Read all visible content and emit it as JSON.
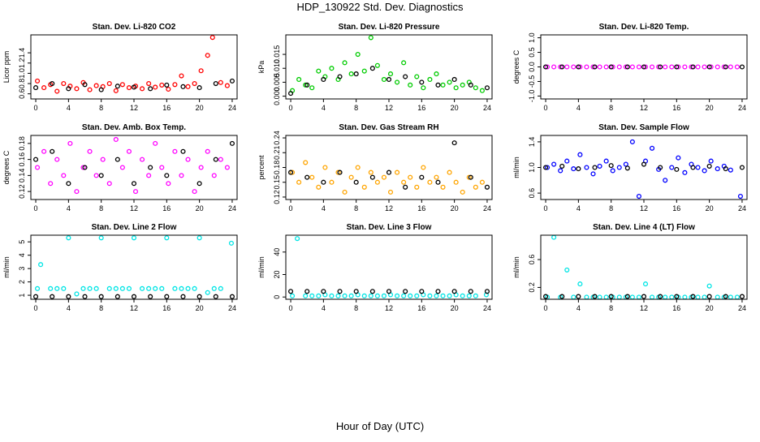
{
  "title": "HDP_130922  Std. Dev. Diagnostics",
  "xlabel": "Hour of Day (UTC)",
  "chart_data": [
    {
      "type": "scatter",
      "title": "Stan. Dev. Li-820 CO2",
      "ylabel": "Licor ppm",
      "xlim": [
        -0.6,
        24.6
      ],
      "xticks": [
        0,
        4,
        8,
        12,
        16,
        20,
        24
      ],
      "ylim": [
        0.5,
        1.75
      ],
      "yticks": [
        0.6,
        0.8,
        {
          "value": 1,
          "label": "1.0"
        },
        1.2,
        1.4
      ],
      "series": [
        {
          "color": "#ff0000",
          "x": [
            0.2,
            1,
            1.8,
            2.6,
            3.4,
            4.2,
            5,
            5.8,
            6.6,
            7.4,
            8.2,
            9,
            9.8,
            10.6,
            11.4,
            12.2,
            13,
            13.8,
            14.6,
            15.4,
            16.2,
            17,
            17.8,
            18.6,
            19.4,
            20.2,
            21,
            21.6,
            22.6,
            23.4
          ],
          "values": [
            0.85,
            0.72,
            0.78,
            0.65,
            0.8,
            0.75,
            0.7,
            0.82,
            0.68,
            0.76,
            0.74,
            0.8,
            0.66,
            0.78,
            0.72,
            0.75,
            0.7,
            0.8,
            0.73,
            0.77,
            0.69,
            0.78,
            0.95,
            0.74,
            0.8,
            1.05,
            1.35,
            1.7,
            0.82,
            0.76
          ]
        },
        {
          "color": "#000000",
          "x": [
            0,
            2,
            4,
            6,
            8,
            10,
            12,
            14,
            16,
            18,
            20,
            22,
            24
          ],
          "values": [
            0.72,
            0.8,
            0.7,
            0.78,
            0.68,
            0.75,
            0.73,
            0.7,
            0.77,
            0.74,
            0.72,
            0.8,
            0.85
          ]
        }
      ]
    },
    {
      "type": "scatter",
      "title": "Stan. Dev. Li-820 Pressure",
      "ylabel": "kPa",
      "xlim": [
        -0.6,
        24.6
      ],
      "xticks": [
        0,
        4,
        8,
        12,
        16,
        20,
        24
      ],
      "ylim": [
        -0.001,
        0.022
      ],
      "yticks": [
        {
          "value": 0,
          "label": "0.000"
        },
        0.005,
        {
          "value": 0.01,
          "label": "0.010"
        },
        0.015
      ],
      "series": [
        {
          "color": "#00cc00",
          "x": [
            0.2,
            1,
            1.8,
            2.6,
            3.4,
            4.2,
            5,
            5.8,
            6.6,
            7.4,
            8.2,
            9,
            9.8,
            10.6,
            11.4,
            12.2,
            13,
            13.8,
            14.6,
            15.4,
            16.2,
            17,
            17.8,
            18.6,
            19.4,
            20.2,
            21,
            21.8,
            22.6,
            23.4
          ],
          "values": [
            0.002,
            0.006,
            0.004,
            0.003,
            0.009,
            0.007,
            0.01,
            0.006,
            0.012,
            0.008,
            0.015,
            0.009,
            0.021,
            0.011,
            0.006,
            0.008,
            0.005,
            0.012,
            0.004,
            0.007,
            0.003,
            0.006,
            0.008,
            0.004,
            0.005,
            0.003,
            0.004,
            0.005,
            0.003,
            0.002
          ]
        },
        {
          "color": "#000000",
          "x": [
            0,
            2,
            4,
            6,
            8,
            10,
            12,
            14,
            16,
            18,
            20,
            22,
            24
          ],
          "values": [
            0.001,
            0.004,
            0.006,
            0.007,
            0.008,
            0.01,
            0.006,
            0.007,
            0.005,
            0.004,
            0.006,
            0.004,
            0.003
          ]
        }
      ]
    },
    {
      "type": "scatter",
      "title": "Stan. Dev. Li-820 Temp.",
      "ylabel": "degrees C",
      "xlim": [
        -0.6,
        24.6
      ],
      "xticks": [
        0,
        4,
        8,
        12,
        16,
        20,
        24
      ],
      "ylim": [
        -1.1,
        1.1
      ],
      "yticks": [
        {
          "value": -1,
          "label": "-1.0"
        },
        -0.5,
        {
          "value": 0,
          "label": "0.0"
        },
        0.5,
        {
          "value": 1,
          "label": "1.0"
        }
      ],
      "series": [
        {
          "color": "#ff00ff",
          "x": [
            0.2,
            1,
            1.8,
            2.6,
            3.4,
            4.2,
            5,
            5.8,
            6.6,
            7.4,
            8.2,
            9,
            9.8,
            10.6,
            11.4,
            12.2,
            13,
            13.8,
            14.6,
            15.4,
            16.2,
            17,
            17.8,
            18.6,
            19.4,
            20.2,
            21,
            21.8,
            22.6,
            23.4
          ],
          "values": [
            0,
            0,
            0,
            0,
            0,
            0,
            0,
            0,
            0,
            0,
            0,
            0,
            0,
            0,
            0,
            0,
            0,
            0,
            0,
            0,
            0,
            0,
            0,
            0,
            0,
            0,
            0,
            0,
            0,
            0
          ]
        },
        {
          "color": "#000000",
          "x": [
            0,
            2,
            4,
            6,
            8,
            10,
            12,
            14,
            16,
            18,
            20,
            22,
            24
          ],
          "values": [
            0,
            0,
            0,
            0,
            0,
            0,
            0,
            0,
            0,
            0,
            0,
            0,
            0
          ]
        }
      ]
    },
    {
      "type": "scatter",
      "title": "Stan. Dev. Amb. Box Temp.",
      "ylabel": "degrees C",
      "xlim": [
        -0.6,
        24.6
      ],
      "xticks": [
        0,
        4,
        8,
        12,
        16,
        20,
        24
      ],
      "ylim": [
        0.11,
        0.19
      ],
      "yticks": [
        0.12,
        0.14,
        0.16,
        0.18
      ],
      "series": [
        {
          "color": "#ff00ff",
          "x": [
            0.2,
            1,
            1.8,
            2.6,
            3.4,
            4.2,
            5,
            5.8,
            6.6,
            7.4,
            8.2,
            9,
            9.8,
            10.6,
            11.4,
            12.2,
            13,
            13.8,
            14.6,
            15.4,
            16.2,
            17,
            17.8,
            18.6,
            19.4,
            20.2,
            21,
            21.8,
            22.6,
            23.4
          ],
          "values": [
            0.15,
            0.17,
            0.13,
            0.16,
            0.14,
            0.18,
            0.12,
            0.15,
            0.17,
            0.14,
            0.16,
            0.13,
            0.185,
            0.15,
            0.17,
            0.12,
            0.16,
            0.14,
            0.18,
            0.15,
            0.13,
            0.17,
            0.14,
            0.16,
            0.12,
            0.15,
            0.17,
            0.14,
            0.16,
            0.15
          ]
        },
        {
          "color": "#000000",
          "x": [
            0,
            2,
            4,
            6,
            8,
            10,
            12,
            14,
            16,
            18,
            20,
            22,
            24
          ],
          "values": [
            0.16,
            0.17,
            0.13,
            0.15,
            0.14,
            0.16,
            0.13,
            0.15,
            0.14,
            0.17,
            0.13,
            0.16,
            0.18
          ]
        }
      ]
    },
    {
      "type": "scatter",
      "title": "Stan. Dev. Gas Stream RH",
      "ylabel": "percent",
      "xlim": [
        -0.6,
        24.6
      ],
      "xticks": [
        0,
        4,
        8,
        12,
        16,
        20,
        24
      ],
      "ylim": [
        0.115,
        0.245
      ],
      "yticks": [
        0.12,
        0.15,
        0.18,
        0.21,
        0.24
      ],
      "series": [
        {
          "color": "#ffa500",
          "x": [
            0.2,
            1,
            1.8,
            2.6,
            3.4,
            4.2,
            5,
            5.8,
            6.6,
            7.4,
            8.2,
            9,
            9.8,
            10.6,
            11.4,
            12.2,
            13,
            13.8,
            14.6,
            15.4,
            16.2,
            17,
            17.8,
            18.6,
            19.4,
            20.2,
            21,
            21.8,
            22.6,
            23.4
          ],
          "values": [
            0.17,
            0.15,
            0.19,
            0.16,
            0.14,
            0.18,
            0.15,
            0.17,
            0.13,
            0.16,
            0.18,
            0.14,
            0.17,
            0.15,
            0.16,
            0.13,
            0.17,
            0.15,
            0.16,
            0.14,
            0.18,
            0.15,
            0.16,
            0.14,
            0.17,
            0.15,
            0.13,
            0.16,
            0.14,
            0.15
          ]
        },
        {
          "color": "#000000",
          "x": [
            0,
            2,
            4,
            6,
            8,
            10,
            12,
            14,
            16,
            18,
            20,
            22,
            24
          ],
          "values": [
            0.17,
            0.16,
            0.15,
            0.17,
            0.15,
            0.16,
            0.17,
            0.14,
            0.16,
            0.15,
            0.23,
            0.16,
            0.14
          ]
        }
      ]
    },
    {
      "type": "scatter",
      "title": "Stan. Dev. Sample Flow",
      "ylabel": "ml/min",
      "xlim": [
        -0.6,
        24.6
      ],
      "xticks": [
        0,
        4,
        8,
        12,
        16,
        20,
        24
      ],
      "ylim": [
        0.5,
        1.5
      ],
      "yticks": [
        0.6,
        {
          "value": 1,
          "label": "1.0"
        },
        1.4
      ],
      "series": [
        {
          "color": "#0000ff",
          "x": [
            0.2,
            1,
            1.8,
            2.6,
            3.4,
            4.2,
            5,
            5.8,
            6.6,
            7.4,
            8.2,
            9,
            9.8,
            10.6,
            11.4,
            12.2,
            13,
            13.8,
            14.6,
            15.4,
            16.2,
            17,
            17.8,
            18.6,
            19.4,
            20.2,
            21,
            21.8,
            22.6,
            23.8
          ],
          "values": [
            1.0,
            1.05,
            0.95,
            1.1,
            0.98,
            1.2,
            1.0,
            0.9,
            1.02,
            1.1,
            0.95,
            1.0,
            1.05,
            1.4,
            0.55,
            1.1,
            1.3,
            0.97,
            0.8,
            1.0,
            1.15,
            0.92,
            1.05,
            1.0,
            0.95,
            1.1,
            0.98,
            1.02,
            0.96,
            0.55
          ]
        },
        {
          "color": "#000000",
          "x": [
            0,
            2,
            4,
            6,
            8,
            10,
            12,
            14,
            16,
            18,
            20,
            22,
            24
          ],
          "values": [
            1.0,
            1.02,
            0.98,
            1.0,
            1.03,
            0.99,
            1.05,
            1.0,
            0.97,
            1.0,
            1.02,
            0.98,
            1.0
          ]
        }
      ]
    },
    {
      "type": "scatter",
      "title": "Stan. Dev. Line 2 Flow",
      "ylabel": "ml/min",
      "xlim": [
        -0.6,
        24.6
      ],
      "xticks": [
        0,
        4,
        8,
        12,
        16,
        20,
        24
      ],
      "ylim": [
        0.7,
        5.5
      ],
      "yticks": [
        1,
        2,
        3,
        4,
        5
      ],
      "series": [
        {
          "color": "#00e5e5",
          "x": [
            0.2,
            0.6,
            1.8,
            2.6,
            3.4,
            4,
            5,
            5.8,
            6.6,
            7.4,
            8,
            9,
            9.8,
            10.6,
            11.4,
            12,
            13,
            13.8,
            14.6,
            15.4,
            16,
            17,
            17.8,
            18.6,
            19.4,
            20,
            21,
            21.8,
            22.6,
            23.9
          ],
          "values": [
            1.5,
            3.3,
            1.5,
            1.5,
            1.5,
            5.3,
            1.1,
            1.5,
            1.5,
            1.5,
            5.3,
            1.5,
            1.5,
            1.5,
            1.5,
            5.3,
            1.5,
            1.5,
            1.5,
            1.5,
            5.3,
            1.5,
            1.5,
            1.5,
            1.5,
            5.3,
            1.2,
            1.5,
            1.5,
            4.9
          ]
        },
        {
          "color": "#000000",
          "x": [
            0,
            2,
            4,
            6,
            8,
            10,
            12,
            14,
            16,
            18,
            20,
            22,
            24
          ],
          "values": [
            0.9,
            0.9,
            0.9,
            0.9,
            0.9,
            0.9,
            0.9,
            0.9,
            0.9,
            0.9,
            0.9,
            0.9,
            0.9
          ]
        }
      ]
    },
    {
      "type": "scatter",
      "title": "Stan. Dev. Line 3 Flow",
      "ylabel": "ml/min",
      "xlim": [
        -0.6,
        24.6
      ],
      "xticks": [
        0,
        4,
        8,
        12,
        16,
        20,
        24
      ],
      "ylim": [
        -2,
        55
      ],
      "yticks": [
        0,
        20,
        40
      ],
      "series": [
        {
          "color": "#00e5e5",
          "x": [
            0.2,
            0.8,
            1.8,
            2.6,
            3.4,
            4.2,
            5,
            5.8,
            6.6,
            7.4,
            8.2,
            9,
            9.8,
            10.6,
            11.4,
            12.2,
            13,
            13.8,
            14.6,
            15.4,
            16.2,
            17,
            17.8,
            18.6,
            19.4,
            20.2,
            21,
            21.8,
            22.6,
            23.9
          ],
          "values": [
            1,
            52,
            1,
            1,
            1,
            2,
            1,
            1,
            1,
            1,
            2,
            1,
            1,
            1,
            1,
            2,
            1,
            1,
            1,
            1,
            2,
            1,
            1,
            1,
            1,
            2,
            1,
            1,
            1,
            2
          ]
        },
        {
          "color": "#000000",
          "x": [
            0,
            2,
            4,
            6,
            8,
            10,
            12,
            14,
            16,
            18,
            20,
            22,
            24
          ],
          "values": [
            5,
            5,
            5,
            5,
            5,
            5,
            5,
            5,
            5,
            5,
            5,
            5,
            5
          ]
        }
      ]
    },
    {
      "type": "scatter",
      "title": "Stan. Dev. Line 4 (LT) Flow",
      "ylabel": "ml/min",
      "xlim": [
        -0.6,
        24.6
      ],
      "xticks": [
        0,
        4,
        8,
        12,
        16,
        20,
        24
      ],
      "ylim": [
        0.03,
        0.95
      ],
      "yticks": [
        0.2,
        0.6
      ],
      "series": [
        {
          "color": "#00e5e5",
          "x": [
            0.2,
            1,
            1.8,
            2.6,
            3.4,
            4.2,
            5,
            5.8,
            6.6,
            7.4,
            8.2,
            9,
            9.8,
            10.6,
            11.4,
            12.2,
            13,
            13.8,
            14.6,
            15.4,
            16.2,
            17,
            17.8,
            18.6,
            19.4,
            20,
            21,
            21.8,
            22.6,
            23.4
          ],
          "values": [
            0.06,
            0.92,
            0.06,
            0.45,
            0.06,
            0.25,
            0.06,
            0.06,
            0.06,
            0.06,
            0.06,
            0.06,
            0.06,
            0.06,
            0.06,
            0.25,
            0.06,
            0.06,
            0.06,
            0.06,
            0.06,
            0.06,
            0.06,
            0.06,
            0.06,
            0.22,
            0.06,
            0.06,
            0.06,
            0.06
          ]
        },
        {
          "color": "#000000",
          "x": [
            0,
            2,
            4,
            6,
            8,
            10,
            12,
            14,
            16,
            18,
            20,
            22,
            24
          ],
          "values": [
            0.07,
            0.07,
            0.07,
            0.07,
            0.07,
            0.07,
            0.07,
            0.07,
            0.07,
            0.07,
            0.07,
            0.07,
            0.07
          ]
        }
      ]
    }
  ]
}
